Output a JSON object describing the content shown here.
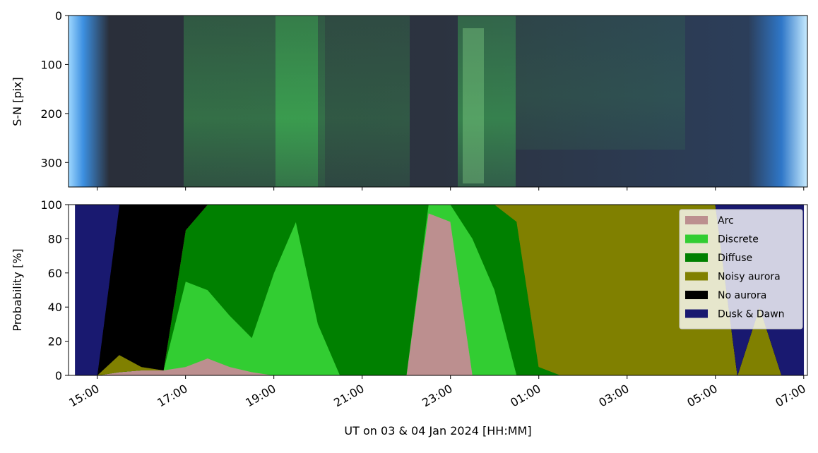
{
  "chart_data": [
    {
      "type": "image",
      "ylabel": "S-N [pix]",
      "ylim": [
        350,
        0
      ],
      "yticks": [
        0,
        100,
        200,
        300
      ]
    },
    {
      "type": "stackedarea",
      "ylabel": "Probability [%]",
      "xlabel": "UT on 03 & 04 Jan 2024 [HH:MM]",
      "xlim": [
        "2024-01-03T14:21",
        "2024-01-04T07:05"
      ],
      "xticks": [
        {
          "value": "2024-01-03T15:00",
          "label": "15:00"
        },
        {
          "value": "2024-01-03T17:00",
          "label": "17:00"
        },
        {
          "value": "2024-01-03T19:00",
          "label": "19:00"
        },
        {
          "value": "2024-01-03T21:00",
          "label": "21:00"
        },
        {
          "value": "2024-01-03T23:00",
          "label": "23:00"
        },
        {
          "value": "2024-01-04T01:00",
          "label": "01:00"
        },
        {
          "value": "2024-01-04T03:00",
          "label": "03:00"
        },
        {
          "value": "2024-01-04T05:00",
          "label": "05:00"
        },
        {
          "value": "2024-01-04T07:00",
          "label": "07:00"
        }
      ],
      "ylim": [
        0,
        100
      ],
      "yticks": [
        0,
        20,
        40,
        60,
        80,
        100
      ],
      "legend": "upper right",
      "x": [
        "2024-01-03T14:30",
        "2024-01-03T15:00",
        "2024-01-03T15:30",
        "2024-01-03T16:00",
        "2024-01-03T16:30",
        "2024-01-03T17:00",
        "2024-01-03T17:30",
        "2024-01-03T18:00",
        "2024-01-03T18:30",
        "2024-01-03T19:00",
        "2024-01-03T19:30",
        "2024-01-03T20:00",
        "2024-01-03T20:30",
        "2024-01-03T21:00",
        "2024-01-03T21:30",
        "2024-01-03T22:00",
        "2024-01-03T22:30",
        "2024-01-03T23:00",
        "2024-01-03T23:30",
        "2024-01-04T00:00",
        "2024-01-04T00:30",
        "2024-01-04T01:00",
        "2024-01-04T01:30",
        "2024-01-04T02:00",
        "2024-01-04T02:30",
        "2024-01-04T03:00",
        "2024-01-04T03:30",
        "2024-01-04T04:00",
        "2024-01-04T04:30",
        "2024-01-04T05:00",
        "2024-01-04T05:30",
        "2024-01-04T06:00",
        "2024-01-04T06:30",
        "2024-01-04T07:00"
      ],
      "series": [
        {
          "name": "Arc",
          "color": "#bc8f8f",
          "values": [
            0,
            0,
            2,
            3,
            3,
            5,
            10,
            5,
            2,
            0,
            0,
            0,
            0,
            0,
            0,
            0,
            95,
            90,
            0,
            0,
            0,
            0,
            0,
            0,
            0,
            0,
            0,
            0,
            0,
            0,
            0,
            0,
            0,
            0
          ]
        },
        {
          "name": "Discrete",
          "color": "#32cd32",
          "values": [
            0,
            0,
            0,
            0,
            0,
            50,
            40,
            30,
            20,
            60,
            90,
            30,
            0,
            0,
            0,
            0,
            5,
            10,
            80,
            50,
            0,
            0,
            0,
            0,
            0,
            0,
            0,
            0,
            0,
            0,
            0,
            0,
            0,
            0
          ]
        },
        {
          "name": "Diffuse",
          "color": "#008000",
          "values": [
            0,
            0,
            0,
            0,
            0,
            30,
            50,
            65,
            78,
            40,
            10,
            70,
            100,
            100,
            100,
            100,
            0,
            0,
            20,
            50,
            90,
            5,
            0,
            0,
            0,
            0,
            0,
            0,
            0,
            0,
            0,
            0,
            0,
            0
          ]
        },
        {
          "name": "Noisy aurora",
          "color": "#808000",
          "values": [
            0,
            0,
            10,
            2,
            0,
            0,
            0,
            0,
            0,
            0,
            0,
            0,
            0,
            0,
            0,
            0,
            0,
            0,
            0,
            0,
            10,
            95,
            100,
            100,
            100,
            100,
            100,
            100,
            100,
            100,
            0,
            40,
            0,
            0
          ]
        },
        {
          "name": "No aurora",
          "color": "#000000",
          "values": [
            0,
            0,
            88,
            95,
            97,
            15,
            0,
            0,
            0,
            0,
            0,
            0,
            0,
            0,
            0,
            0,
            0,
            0,
            0,
            0,
            0,
            0,
            0,
            0,
            0,
            0,
            0,
            0,
            0,
            0,
            0,
            0,
            0,
            0
          ]
        },
        {
          "name": "Dusk & Dawn",
          "color": "#191970",
          "values": [
            100,
            100,
            0,
            0,
            0,
            0,
            0,
            0,
            0,
            0,
            0,
            0,
            0,
            0,
            0,
            0,
            0,
            0,
            0,
            0,
            0,
            0,
            0,
            0,
            0,
            0,
            0,
            0,
            0,
            0,
            100,
            60,
            100,
            100
          ]
        }
      ]
    }
  ]
}
